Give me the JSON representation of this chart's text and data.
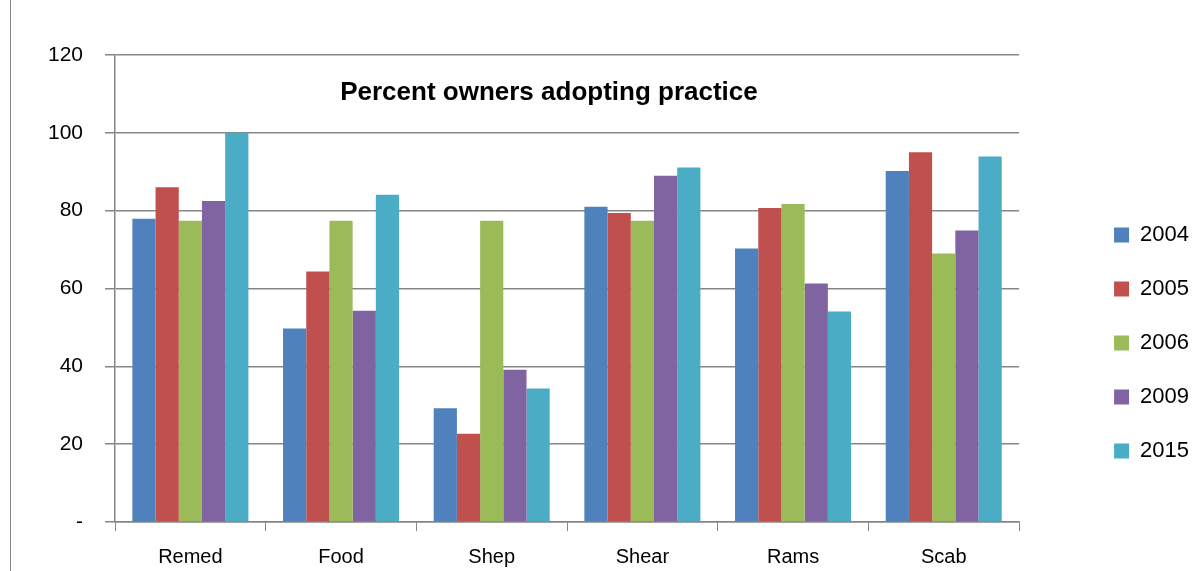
{
  "chart_data": {
    "type": "bar",
    "title": "Percent owners adopting practice",
    "categories": [
      "Remed",
      "Food",
      "Shep",
      "Shear",
      "Rams",
      "Scab"
    ],
    "series": [
      {
        "name": "2004",
        "color": "#4f81bd",
        "values": [
          77.9,
          49.7,
          29.2,
          81.0,
          70.3,
          90.2
        ]
      },
      {
        "name": "2005",
        "color": "#c0504d",
        "values": [
          86.0,
          64.4,
          22.7,
          79.4,
          80.7,
          95.0
        ]
      },
      {
        "name": "2006",
        "color": "#9bbb59",
        "values": [
          77.4,
          77.4,
          77.4,
          77.4,
          81.7,
          69.0
        ]
      },
      {
        "name": "2009",
        "color": "#8064a2",
        "values": [
          82.5,
          54.3,
          39.1,
          89.0,
          61.3,
          74.9
        ]
      },
      {
        "name": "2015",
        "color": "#4bacc6",
        "values": [
          100,
          84.1,
          34.3,
          91.1,
          54.1,
          93.9
        ]
      }
    ],
    "ylim": [
      0,
      120
    ],
    "yticks": [
      {
        "value": 0,
        "label": "-"
      },
      20,
      40,
      60,
      80,
      100,
      120
    ],
    "grid": "y",
    "legend": "right"
  }
}
